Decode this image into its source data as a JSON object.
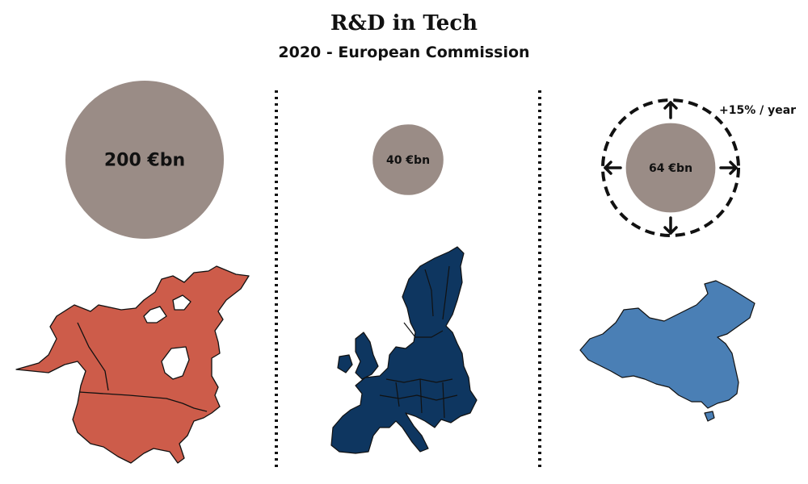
{
  "title": "R&D in Tech",
  "subtitle": "2020 - European Commission",
  "chart_data": {
    "type": "bubble",
    "title": "R&D in Tech",
    "subtitle": "2020 - European Commission",
    "unit": "€bn",
    "categories": [
      "USA/North America",
      "Europe",
      "China"
    ],
    "values": [
      200,
      40,
      64
    ],
    "labels": [
      "200 €bn",
      "40 €bn",
      "64 €bn"
    ],
    "annotations": [
      {
        "category": "China",
        "text": "+15% / year"
      }
    ],
    "colors": {
      "bubble": "#9a8c86",
      "north_america": "#cd5c4a",
      "europe": "#0e3660",
      "china": "#4a7fb5",
      "divider": "#111111"
    }
  }
}
